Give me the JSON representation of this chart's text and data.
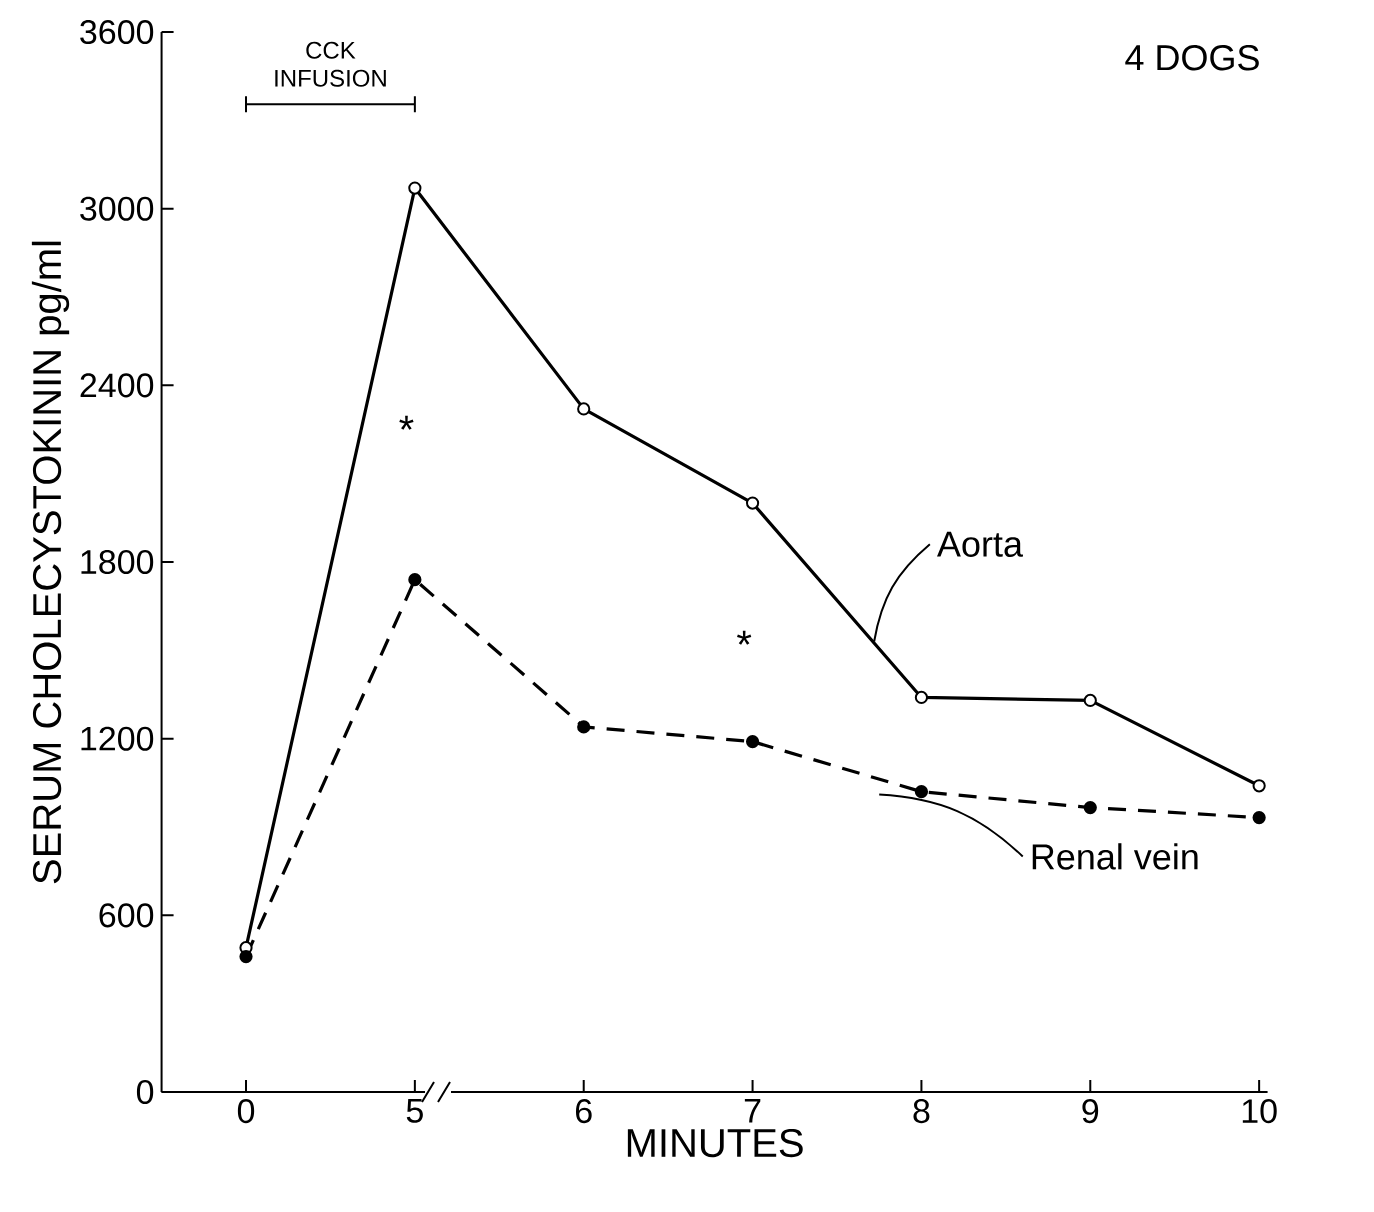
{
  "chart_data": {
    "type": "line",
    "xlabel": "MINUTES",
    "ylabel": "SERUM CHOLECYSTOKININ pg/ml",
    "categories": [
      "0",
      "5",
      "6",
      "7",
      "8",
      "9",
      "10"
    ],
    "ylim": [
      0,
      3600
    ],
    "yticks": [
      0,
      600,
      1200,
      1800,
      2400,
      3000,
      3600
    ],
    "series": [
      {
        "name": "Aorta",
        "color": "#000000",
        "line_style": "solid",
        "values": [
          490,
          3070,
          2320,
          2000,
          1340,
          1330,
          1040
        ]
      },
      {
        "name": "Renal vein",
        "color": "#000000",
        "line_style": "dashed",
        "values": [
          460,
          1740,
          1240,
          1190,
          1020,
          966,
          932
        ]
      }
    ],
    "marker": "circle",
    "annotations": [
      "4 DOGS",
      "CCK INFUSION",
      "*",
      "*"
    ],
    "grid": false
  }
}
